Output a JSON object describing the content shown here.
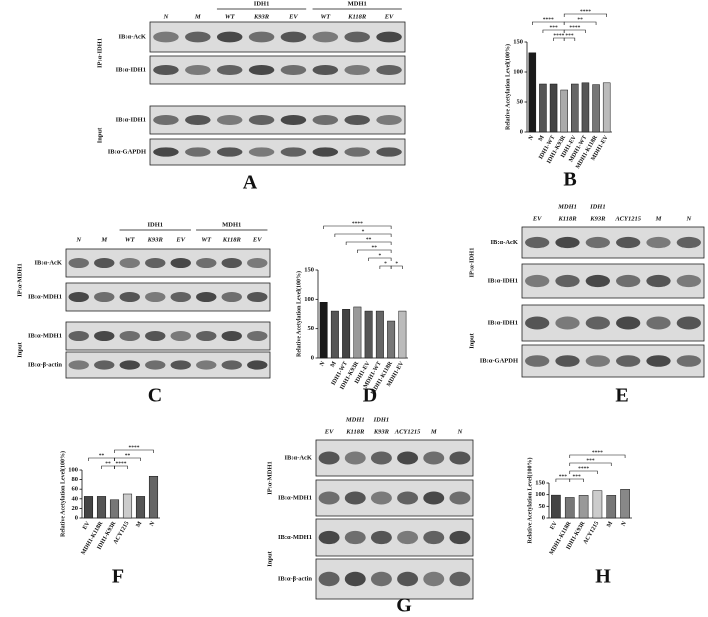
{
  "chart_data": [
    {
      "type": "bar",
      "letter": "B",
      "y_label": "Relative Acetylation Level(100%)",
      "categories": [
        "N",
        "M",
        "IDH1-WT",
        "IDH1-K93R",
        "IDH1-EV",
        "MDH1-WT",
        "MDH1-K118R",
        "MDH1-EV"
      ],
      "values": [
        132,
        80,
        80,
        70,
        80,
        82,
        79,
        82
      ],
      "colors": [
        "#1a1a1a",
        "#555555",
        "#444444",
        "#aaaaaa",
        "#666666",
        "#555555",
        "#777777",
        "#bbbbbb"
      ],
      "ylim": [
        0,
        150
      ],
      "yticks": [
        0,
        50,
        100,
        150
      ],
      "comparisons": [
        {
          "pair": [
            "N",
            "IDH1-K93R"
          ],
          "label": "****"
        },
        {
          "pair": [
            "IDH1-K93R",
            "MDH1-EV"
          ],
          "label": "****"
        },
        {
          "pair": [
            "M",
            "IDH1-K93R"
          ],
          "label": "***"
        },
        {
          "pair": [
            "IDH1-K93R",
            "MDH1-K118R"
          ],
          "label": "**"
        },
        {
          "pair": [
            "IDH1-WT",
            "IDH1-K93R"
          ],
          "label": "****"
        },
        {
          "pair": [
            "IDH1-K93R",
            "MDH1-WT"
          ],
          "label": "****"
        },
        {
          "pair": [
            "IDH1-K93R",
            "IDH1-EV"
          ],
          "label": "***"
        }
      ]
    },
    {
      "type": "bar",
      "letter": "D",
      "y_label": "Relative Acetylation Level(100%)",
      "categories": [
        "N",
        "M",
        "IDH1-WT",
        "IDH1-K93R",
        "IDH1-EV",
        "MDH1-WT",
        "MDH1-K118R",
        "MDH1-EV"
      ],
      "values": [
        95,
        80,
        83,
        87,
        80,
        80,
        63,
        80
      ],
      "colors": [
        "#1a1a1a",
        "#555555",
        "#444444",
        "#999999",
        "#555555",
        "#666666",
        "#777777",
        "#bbbbbb"
      ],
      "ylim": [
        0,
        150
      ],
      "yticks": [
        0,
        50,
        100,
        150
      ],
      "comparisons": [
        {
          "pair": [
            "N",
            "MDH1-K118R"
          ],
          "label": "****"
        },
        {
          "pair": [
            "M",
            "MDH1-K118R"
          ],
          "label": "*"
        },
        {
          "pair": [
            "IDH1-WT",
            "MDH1-K118R"
          ],
          "label": "**"
        },
        {
          "pair": [
            "IDH1-K93R",
            "MDH1-K118R"
          ],
          "label": "**"
        },
        {
          "pair": [
            "IDH1-EV",
            "MDH1-K118R"
          ],
          "label": "*"
        },
        {
          "pair": [
            "MDH1-WT",
            "MDH1-K118R"
          ],
          "label": "*"
        },
        {
          "pair": [
            "MDH1-K118R",
            "MDH1-EV"
          ],
          "label": "*"
        }
      ]
    },
    {
      "type": "bar",
      "letter": "F",
      "y_label": "Relative Acetylation Level(100%)",
      "categories": [
        "EV",
        "MDH1-K118R",
        "IDH1-K93R",
        "ACY1215",
        "M",
        "N"
      ],
      "values": [
        45,
        45,
        38,
        50,
        45,
        87
      ],
      "colors": [
        "#444444",
        "#555555",
        "#777777",
        "#cccccc",
        "#555555",
        "#666666"
      ],
      "ylim": [
        0,
        100
      ],
      "yticks": [
        0,
        20,
        40,
        60,
        80,
        100
      ],
      "comparisons": [
        {
          "pair": [
            "EV",
            "IDH1-K93R"
          ],
          "label": "**"
        },
        {
          "pair": [
            "MDH1-K118R",
            "IDH1-K93R"
          ],
          "label": "**"
        },
        {
          "pair": [
            "IDH1-K93R",
            "ACY1215"
          ],
          "label": "****"
        },
        {
          "pair": [
            "IDH1-K93R",
            "M"
          ],
          "label": "**"
        },
        {
          "pair": [
            "IDH1-K93R",
            "N"
          ],
          "label": "****"
        }
      ]
    },
    {
      "type": "bar",
      "letter": "H",
      "y_label": "Relative Acetylation Level(100%)",
      "categories": [
        "EV",
        "MDH1-K118R",
        "IDH1-K93R",
        "ACY1215",
        "M",
        "N"
      ],
      "values": [
        98,
        88,
        97,
        117,
        97,
        123
      ],
      "colors": [
        "#444444",
        "#777777",
        "#999999",
        "#cccccc",
        "#777777",
        "#888888"
      ],
      "ylim": [
        0,
        150
      ],
      "yticks": [
        0,
        50,
        100,
        150
      ],
      "comparisons": [
        {
          "pair": [
            "EV",
            "MDH1-K118R"
          ],
          "label": "***"
        },
        {
          "pair": [
            "MDH1-K118R",
            "IDH1-K93R"
          ],
          "label": "***"
        },
        {
          "pair": [
            "MDH1-K118R",
            "ACY1215"
          ],
          "label": "****"
        },
        {
          "pair": [
            "MDH1-K118R",
            "M"
          ],
          "label": "***"
        },
        {
          "pair": [
            "MDH1-K118R",
            "N"
          ],
          "label": "****"
        }
      ]
    }
  ],
  "blots": [
    {
      "letter": "A",
      "lanes": [
        "N",
        "M",
        {
          "group": "IDH1",
          "lanes": [
            "WT",
            "K93R",
            "EV"
          ]
        },
        {
          "group": "MDH1",
          "lanes": [
            "WT",
            "K118R",
            "EV"
          ]
        }
      ],
      "sections": [
        {
          "label": "IP:α-IDH1",
          "rows": [
            "IB:α-AcK",
            "IB:α-IDH1"
          ]
        },
        {
          "label": "Input",
          "rows": [
            "IB:α-IDH1",
            "IB:α-GAPDH"
          ]
        }
      ]
    },
    {
      "letter": "C",
      "lanes": [
        "N",
        "M",
        {
          "group": "IDH1",
          "lanes": [
            "WT",
            "K93R",
            "EV"
          ]
        },
        {
          "group": "MDH1",
          "lanes": [
            "WT",
            "K118R",
            "EV"
          ]
        }
      ],
      "sections": [
        {
          "label": "IP:α-MDH1",
          "rows": [
            "IB:α-AcK",
            "IB:α-MDH1"
          ]
        },
        {
          "label": "Input",
          "rows": [
            "IB:α-MDH1",
            "IB:α-β-actin"
          ]
        }
      ]
    },
    {
      "letter": "E",
      "lanes": [
        "EV",
        [
          "MDH1",
          "K118R"
        ],
        [
          "IDH1",
          "K93R"
        ],
        "ACY1215",
        "M",
        "N"
      ],
      "sections": [
        {
          "label": "IP:α-IDH1",
          "rows": [
            "IB:α-AcK",
            "IB:α-IDH1"
          ]
        },
        {
          "label": "Input",
          "rows": [
            "IB:α-IDH1",
            "IB:α-GAPDH"
          ]
        }
      ]
    },
    {
      "letter": "G",
      "lanes": [
        "EV",
        [
          "MDH1",
          "K118R"
        ],
        [
          "IDH1",
          "K93R"
        ],
        "ACY1215",
        "M",
        "N"
      ],
      "sections": [
        {
          "label": "IP:α-MDH1",
          "rows": [
            "IB:α-AcK",
            "IB:α-MDH1"
          ]
        },
        {
          "label": "Input",
          "rows": [
            "IB:α-MDH1",
            "IB:α-β-actin"
          ]
        }
      ]
    }
  ]
}
